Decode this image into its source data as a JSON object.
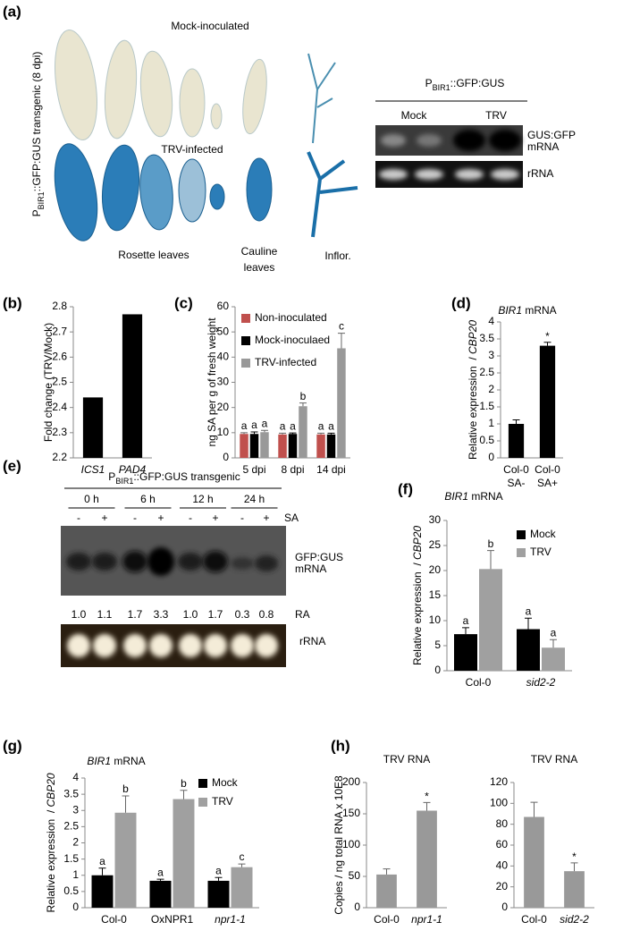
{
  "panel_a": {
    "label": "(a)",
    "mock_title": "Mock-inoculated",
    "trv_title": "TRV-infected",
    "side_label": [
      "P",
      "BIR1",
      "::GFP:GUS transgenic (8 dpi)"
    ],
    "rosette": "Rosette leaves",
    "cauline": [
      "Cauline",
      "leaves"
    ],
    "inflor": "Inflor.",
    "blot_header": [
      "P",
      "BIR1",
      "::GFP:GUS"
    ],
    "mock": "Mock",
    "trv": "TRV",
    "band": [
      "GUS:GFP",
      "mRNA"
    ],
    "rrna": "rRNA"
  },
  "panel_e": {
    "label": "(e)",
    "header": [
      "P",
      "BIR1",
      "::GFP:GUS transgenic"
    ],
    "times": [
      "0 h",
      "6 h",
      "12 h",
      "24 h"
    ],
    "signs": [
      "-",
      "+",
      "-",
      "+",
      "-",
      "+",
      "-",
      "+"
    ],
    "treatment": "SA",
    "band": [
      "GFP:GUS",
      "mRNA"
    ],
    "ra_values": [
      "1.0",
      "1.1",
      "1.7",
      "3.3",
      "1.0",
      "1.7",
      "0.3",
      "0.8"
    ],
    "ra_label": "RA",
    "rrna": "rRNA"
  },
  "chart_data": [
    {
      "type": "bar",
      "panel": "(b)",
      "ylabel": "Fold change (TRV/Mock)",
      "categories": [
        "ICS1",
        "PAD4"
      ],
      "values": [
        2.44,
        2.77
      ],
      "color": "#000000",
      "ylim": [
        2.2,
        2.8
      ],
      "yticks": [
        2.2,
        2.3,
        2.4,
        2.5,
        2.6,
        2.7,
        2.8
      ]
    },
    {
      "type": "bar",
      "panel": "(c)",
      "ylabel": "ng SA per g of fresh weight",
      "categories": [
        "5 dpi",
        "8 dpi",
        "14 dpi"
      ],
      "series": [
        {
          "name": "Non-inoculated",
          "color": "#c0504d",
          "values": [
            9.5,
            9.3,
            9.3
          ],
          "errors": [
            0.5,
            0.5,
            0.5
          ],
          "labels": [
            "a",
            "a",
            "a"
          ]
        },
        {
          "name": "Mock-inoculaed",
          "color": "#000000",
          "values": [
            9.5,
            9.5,
            9.3
          ],
          "errors": [
            0.8,
            0.4,
            0.5
          ],
          "labels": [
            "a",
            "a",
            "a"
          ]
        },
        {
          "name": "TRV-infected",
          "color": "#999999",
          "values": [
            10.2,
            20.5,
            43.5
          ],
          "errors": [
            0.7,
            1.3,
            6
          ],
          "labels": [
            "a",
            "b",
            "c"
          ]
        }
      ],
      "ylim": [
        0,
        60
      ],
      "yticks": [
        0,
        10,
        20,
        30,
        40,
        50,
        60
      ],
      "legend": "upper left"
    },
    {
      "type": "bar",
      "panel": "(d)",
      "title": [
        "BIR1",
        " mRNA"
      ],
      "ylabel": [
        "Relative expression  /",
        " CBP20"
      ],
      "categories": [
        [
          "Col-0",
          "SA-"
        ],
        [
          "Col-0",
          "SA+"
        ]
      ],
      "values": [
        1.0,
        3.3
      ],
      "errors": [
        0.12,
        0.1
      ],
      "labels": [
        null,
        "*"
      ],
      "color": "#000000",
      "ylim": [
        0,
        4
      ],
      "yticks": [
        0,
        0.5,
        1,
        1.5,
        2,
        2.5,
        3,
        3.5,
        4
      ]
    },
    {
      "type": "bar",
      "panel": "(f)",
      "title": [
        "BIR1",
        " mRNA"
      ],
      "ylabel": [
        "Relative expression  /",
        " CBP20"
      ],
      "categories": [
        "Col-0",
        "sid2-2"
      ],
      "series": [
        {
          "name": "Mock",
          "color": "#000000",
          "values": [
            7.3,
            8.3
          ],
          "errors": [
            1.3,
            2.2
          ],
          "labels": [
            "a",
            "a"
          ]
        },
        {
          "name": "TRV",
          "color": "#a0a0a0",
          "values": [
            20.3,
            4.6
          ],
          "errors": [
            3.7,
            1.6
          ],
          "labels": [
            "b",
            "a"
          ]
        }
      ],
      "ylim": [
        0,
        30
      ],
      "yticks": [
        0,
        5,
        10,
        15,
        20,
        25,
        30
      ],
      "legend": "upper right"
    },
    {
      "type": "bar",
      "panel": "(g)",
      "title": [
        "BIR1",
        " mRNA"
      ],
      "ylabel": [
        "Relative expression  /",
        " CBP20"
      ],
      "categories": [
        "Col-0",
        "OxNPR1",
        "npr1-1"
      ],
      "series": [
        {
          "name": "Mock",
          "color": "#000000",
          "values": [
            1.0,
            0.83,
            0.83
          ],
          "errors": [
            0.22,
            0.05,
            0.1
          ],
          "labels": [
            "a",
            "a",
            "a"
          ]
        },
        {
          "name": "TRV",
          "color": "#a0a0a0",
          "values": [
            2.93,
            3.35,
            1.25
          ],
          "errors": [
            0.52,
            0.27,
            0.1
          ],
          "labels": [
            "b",
            "b",
            "c"
          ]
        }
      ],
      "ylim": [
        0,
        4
      ],
      "yticks": [
        0,
        0.5,
        1,
        1.5,
        2,
        2.5,
        3,
        3.5,
        4
      ],
      "legend": "upper right"
    },
    {
      "type": "bar",
      "panel": "(h)",
      "title": "TRV RNA",
      "ylabel": "Copies / ng total RNA x 10E8",
      "categories": [
        "Col-0",
        "npr1-1"
      ],
      "values": [
        53,
        155
      ],
      "errors": [
        9,
        13
      ],
      "labels": [
        null,
        "*"
      ],
      "color": "#999999",
      "ylim": [
        0,
        200
      ],
      "yticks": [
        0,
        50,
        100,
        150,
        200
      ]
    },
    {
      "type": "bar",
      "title": "TRV RNA",
      "categories": [
        "Col-0",
        "sid2-2"
      ],
      "values": [
        87,
        35
      ],
      "errors": [
        14,
        8
      ],
      "labels": [
        null,
        "*"
      ],
      "color": "#999999",
      "ylim": [
        0,
        120
      ],
      "yticks": [
        0,
        20,
        40,
        60,
        80,
        100,
        120
      ]
    }
  ]
}
